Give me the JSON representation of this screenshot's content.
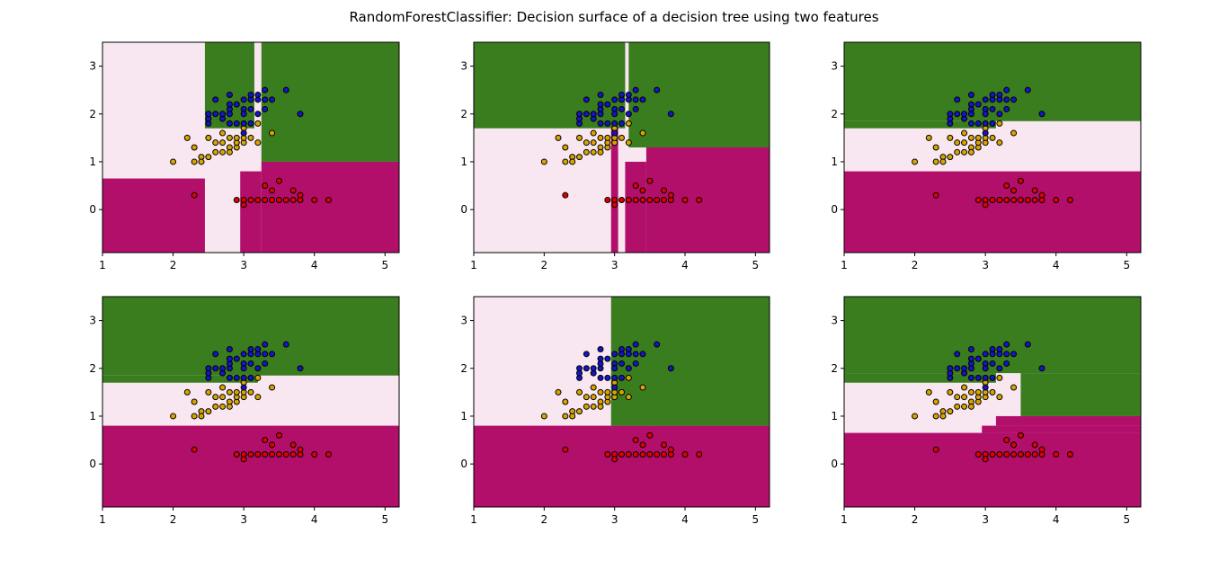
{
  "figure": {
    "title": "RandomForestClassifier: Decision surface of a decision tree using two features",
    "class_colors": {
      "setosa": "#b20f6b",
      "versicolor": "#f8e6f0",
      "virginica": "#3a7d1f"
    },
    "point_colors": {
      "setosa": "#e00000",
      "versicolor": "#d9a400",
      "virginica": "#1515c8"
    }
  },
  "chart_data": [
    {
      "type": "scatter",
      "xlim": [
        1,
        5.2
      ],
      "ylim": [
        -0.9,
        3.5
      ],
      "xticks": [
        "1",
        "2",
        "3",
        "4",
        "5"
      ],
      "yticks": [
        "0",
        "1",
        "2",
        "3"
      ],
      "regions": [
        {
          "class": "versicolor",
          "x": [
            1,
            5.2
          ],
          "y": [
            -0.9,
            3.5
          ]
        },
        {
          "class": "setosa",
          "x": [
            1,
            2.45
          ],
          "y": [
            -0.9,
            0.65
          ]
        },
        {
          "class": "setosa",
          "x": [
            3.25,
            5.2
          ],
          "y": [
            -0.9,
            1.0
          ]
        },
        {
          "class": "setosa",
          "x": [
            2.95,
            3.25
          ],
          "y": [
            -0.9,
            0.8
          ]
        },
        {
          "class": "virginica",
          "x": [
            2.45,
            3.15
          ],
          "y": [
            1.7,
            3.5
          ]
        },
        {
          "class": "virginica",
          "x": [
            3.25,
            5.2
          ],
          "y": [
            1.0,
            3.5
          ]
        }
      ]
    },
    {
      "type": "scatter",
      "xlim": [
        1,
        5.2
      ],
      "ylim": [
        -0.9,
        3.5
      ],
      "xticks": [
        "1",
        "2",
        "3",
        "4",
        "5"
      ],
      "yticks": [
        "0",
        "1",
        "2",
        "3"
      ],
      "regions": [
        {
          "class": "versicolor",
          "x": [
            1,
            5.2
          ],
          "y": [
            -0.9,
            3.5
          ]
        },
        {
          "class": "virginica",
          "x": [
            1,
            3.15
          ],
          "y": [
            1.7,
            3.5
          ]
        },
        {
          "class": "virginica",
          "x": [
            3.2,
            5.2
          ],
          "y": [
            1.3,
            3.5
          ]
        },
        {
          "class": "setosa",
          "x": [
            3.45,
            5.2
          ],
          "y": [
            -0.9,
            1.3
          ]
        },
        {
          "class": "setosa",
          "x": [
            3.15,
            3.45
          ],
          "y": [
            -0.9,
            1.0
          ]
        },
        {
          "class": "setosa",
          "x": [
            2.95,
            3.05
          ],
          "y": [
            -0.9,
            1.7
          ]
        }
      ]
    },
    {
      "type": "scatter",
      "xlim": [
        1,
        5.2
      ],
      "ylim": [
        -0.9,
        3.5
      ],
      "xticks": [
        "1",
        "2",
        "3",
        "4",
        "5"
      ],
      "yticks": [
        "0",
        "1",
        "2",
        "3"
      ],
      "regions": [
        {
          "class": "versicolor",
          "x": [
            1,
            5.2
          ],
          "y": [
            -0.9,
            3.5
          ]
        },
        {
          "class": "setosa",
          "x": [
            1,
            5.2
          ],
          "y": [
            -0.9,
            0.8
          ]
        },
        {
          "class": "virginica",
          "x": [
            1,
            5.2
          ],
          "y": [
            1.85,
            3.5
          ]
        },
        {
          "class": "virginica",
          "x": [
            1,
            3.15
          ],
          "y": [
            1.7,
            1.85
          ]
        }
      ]
    },
    {
      "type": "scatter",
      "xlim": [
        1,
        5.2
      ],
      "ylim": [
        -0.9,
        3.5
      ],
      "xticks": [
        "1",
        "2",
        "3",
        "4",
        "5"
      ],
      "yticks": [
        "0",
        "1",
        "2",
        "3"
      ],
      "regions": [
        {
          "class": "versicolor",
          "x": [
            1,
            5.2
          ],
          "y": [
            -0.9,
            3.5
          ]
        },
        {
          "class": "setosa",
          "x": [
            1,
            5.2
          ],
          "y": [
            -0.9,
            0.8
          ]
        },
        {
          "class": "virginica",
          "x": [
            1,
            5.2
          ],
          "y": [
            1.85,
            3.5
          ]
        },
        {
          "class": "virginica",
          "x": [
            1,
            3.2
          ],
          "y": [
            1.7,
            1.85
          ]
        }
      ]
    },
    {
      "type": "scatter",
      "xlim": [
        1,
        5.2
      ],
      "ylim": [
        -0.9,
        3.5
      ],
      "xticks": [
        "1",
        "2",
        "3",
        "4",
        "5"
      ],
      "yticks": [
        "0",
        "1",
        "2",
        "3"
      ],
      "regions": [
        {
          "class": "versicolor",
          "x": [
            1,
            5.2
          ],
          "y": [
            -0.9,
            3.5
          ]
        },
        {
          "class": "setosa",
          "x": [
            1,
            5.2
          ],
          "y": [
            -0.9,
            0.8
          ]
        },
        {
          "class": "virginica",
          "x": [
            2.95,
            5.2
          ],
          "y": [
            0.8,
            3.5
          ]
        }
      ]
    },
    {
      "type": "scatter",
      "xlim": [
        1,
        5.2
      ],
      "ylim": [
        -0.9,
        3.5
      ],
      "xticks": [
        "1",
        "2",
        "3",
        "4",
        "5"
      ],
      "yticks": [
        "0",
        "1",
        "2",
        "3"
      ],
      "regions": [
        {
          "class": "versicolor",
          "x": [
            1,
            5.2
          ],
          "y": [
            -0.9,
            3.5
          ]
        },
        {
          "class": "setosa",
          "x": [
            1,
            5.2
          ],
          "y": [
            -0.9,
            0.65
          ]
        },
        {
          "class": "setosa",
          "x": [
            2.95,
            5.2
          ],
          "y": [
            0.65,
            0.8
          ]
        },
        {
          "class": "setosa",
          "x": [
            3.15,
            5.2
          ],
          "y": [
            0.8,
            1.0
          ]
        },
        {
          "class": "virginica",
          "x": [
            1,
            5.2
          ],
          "y": [
            1.9,
            3.5
          ]
        },
        {
          "class": "virginica",
          "x": [
            1,
            3.15
          ],
          "y": [
            1.7,
            1.9
          ]
        },
        {
          "class": "virginica",
          "x": [
            3.5,
            5.2
          ],
          "y": [
            1.0,
            1.9
          ]
        }
      ]
    }
  ],
  "points": {
    "setosa": [
      [
        2.3,
        0.3
      ],
      [
        2.9,
        0.2
      ],
      [
        3.0,
        0.2
      ],
      [
        3.0,
        0.1
      ],
      [
        3.1,
        0.2
      ],
      [
        3.2,
        0.2
      ],
      [
        3.3,
        0.2
      ],
      [
        3.4,
        0.2
      ],
      [
        3.5,
        0.2
      ],
      [
        3.6,
        0.2
      ],
      [
        3.7,
        0.2
      ],
      [
        3.8,
        0.2
      ],
      [
        4.0,
        0.2
      ],
      [
        4.2,
        0.2
      ],
      [
        3.3,
        0.5
      ],
      [
        3.4,
        0.4
      ],
      [
        3.5,
        0.6
      ],
      [
        3.7,
        0.4
      ],
      [
        3.8,
        0.3
      ]
    ],
    "versicolor": [
      [
        2.0,
        1.0
      ],
      [
        2.2,
        1.5
      ],
      [
        2.3,
        1.3
      ],
      [
        2.3,
        1.0
      ],
      [
        2.4,
        1.1
      ],
      [
        2.5,
        1.1
      ],
      [
        2.5,
        1.5
      ],
      [
        2.6,
        1.2
      ],
      [
        2.7,
        1.2
      ],
      [
        2.7,
        1.4
      ],
      [
        2.7,
        1.6
      ],
      [
        2.8,
        1.3
      ],
      [
        2.8,
        1.5
      ],
      [
        2.8,
        1.2
      ],
      [
        2.9,
        1.3
      ],
      [
        2.9,
        1.4
      ],
      [
        2.9,
        1.5
      ],
      [
        3.0,
        1.4
      ],
      [
        3.0,
        1.5
      ],
      [
        3.0,
        1.7
      ],
      [
        3.1,
        1.5
      ],
      [
        3.2,
        1.4
      ],
      [
        3.2,
        1.8
      ],
      [
        3.4,
        1.6
      ],
      [
        2.6,
        1.4
      ],
      [
        2.4,
        1.0
      ]
    ],
    "virginica": [
      [
        2.5,
        1.8
      ],
      [
        2.5,
        1.9
      ],
      [
        2.5,
        2.0
      ],
      [
        2.6,
        2.3
      ],
      [
        2.7,
        1.9
      ],
      [
        2.7,
        2.0
      ],
      [
        2.8,
        1.8
      ],
      [
        2.8,
        2.0
      ],
      [
        2.8,
        2.1
      ],
      [
        2.8,
        2.2
      ],
      [
        2.8,
        2.4
      ],
      [
        2.9,
        1.8
      ],
      [
        3.0,
        1.8
      ],
      [
        3.0,
        2.1
      ],
      [
        3.0,
        2.3
      ],
      [
        3.0,
        1.6
      ],
      [
        3.1,
        1.8
      ],
      [
        3.1,
        2.1
      ],
      [
        3.1,
        2.3
      ],
      [
        3.2,
        2.0
      ],
      [
        3.2,
        2.3
      ],
      [
        3.3,
        2.1
      ],
      [
        3.3,
        2.5
      ],
      [
        3.4,
        2.3
      ],
      [
        3.6,
        2.5
      ],
      [
        3.8,
        2.0
      ],
      [
        3.0,
        2.0
      ],
      [
        2.9,
        2.2
      ],
      [
        3.2,
        2.4
      ],
      [
        2.6,
        2.0
      ],
      [
        3.1,
        2.4
      ],
      [
        3.3,
        2.3
      ]
    ]
  }
}
